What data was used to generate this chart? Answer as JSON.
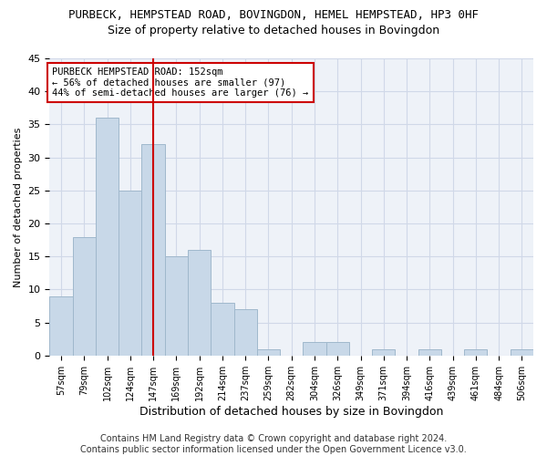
{
  "title1": "PURBECK, HEMPSTEAD ROAD, BOVINGDON, HEMEL HEMPSTEAD, HP3 0HF",
  "title2": "Size of property relative to detached houses in Bovingdon",
  "xlabel": "Distribution of detached houses by size in Bovingdon",
  "ylabel": "Number of detached properties",
  "categories": [
    "57sqm",
    "79sqm",
    "102sqm",
    "124sqm",
    "147sqm",
    "169sqm",
    "192sqm",
    "214sqm",
    "237sqm",
    "259sqm",
    "282sqm",
    "304sqm",
    "326sqm",
    "349sqm",
    "371sqm",
    "394sqm",
    "416sqm",
    "439sqm",
    "461sqm",
    "484sqm",
    "506sqm"
  ],
  "values": [
    9,
    18,
    36,
    25,
    32,
    15,
    16,
    8,
    7,
    1,
    0,
    2,
    2,
    0,
    1,
    0,
    1,
    0,
    1,
    0,
    1
  ],
  "bar_color": "#c8d8e8",
  "bar_edge_color": "#a0b8cc",
  "vline_x": 4.0,
  "vline_color": "#cc0000",
  "annotation_text": "PURBECK HEMPSTEAD ROAD: 152sqm\n← 56% of detached houses are smaller (97)\n44% of semi-detached houses are larger (76) →",
  "annotation_box_color": "#ffffff",
  "annotation_box_edge": "#cc0000",
  "ylim": [
    0,
    45
  ],
  "yticks": [
    0,
    5,
    10,
    15,
    20,
    25,
    30,
    35,
    40,
    45
  ],
  "grid_color": "#d0d8e8",
  "bg_color": "#eef2f8",
  "footer": "Contains HM Land Registry data © Crown copyright and database right 2024.\nContains public sector information licensed under the Open Government Licence v3.0.",
  "title1_fontsize": 9,
  "title2_fontsize": 9,
  "xlabel_fontsize": 9,
  "ylabel_fontsize": 8,
  "tick_fontsize": 8,
  "xtick_fontsize": 7,
  "footer_fontsize": 7
}
